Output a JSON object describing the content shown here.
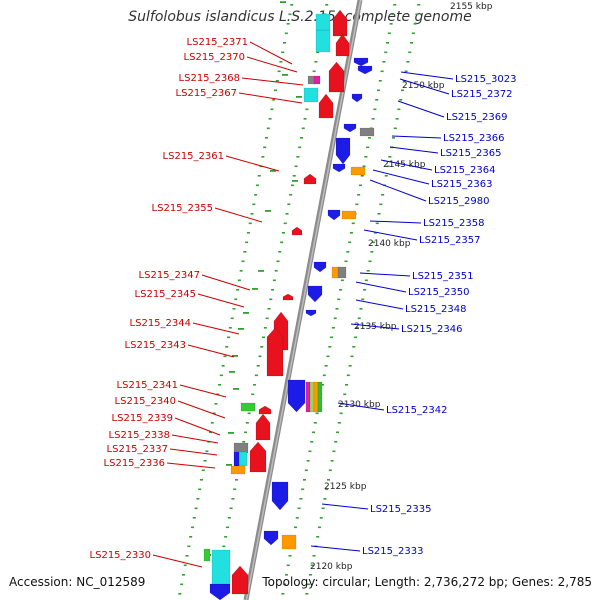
{
  "title": "Sulfolobus islandicus L.S.2.15, complete genome",
  "footer": {
    "accession": "Accession: NC_012589",
    "summary": "Topology: circular; Length: 2,736,272 bp; Genes: 2,785"
  },
  "colors": {
    "forward_gene": "#e8121e",
    "reverse_gene": "#1c1ce6",
    "forward_label": "#cc0000",
    "reverse_label": "#0000cc",
    "backbone": "#8c8c8c",
    "ticks": "#33a033",
    "cyan": "#22e0e0",
    "green": "#33cc33",
    "orange": "#ff9900",
    "gray_block": "#808080",
    "magenta": "#e020a0"
  },
  "scale_labels": [
    "2155 kbp",
    "2150 kbp",
    "2145 kbp",
    "2140 kbp",
    "2135 kbp",
    "2130 kbp",
    "2125 kbp",
    "2120 kbp"
  ],
  "left_labels": [
    "LS215_2371",
    "LS215_2370",
    "LS215_2368",
    "LS215_2367",
    "LS215_2361",
    "LS215_2355",
    "LS215_2347",
    "LS215_2345",
    "LS215_2344",
    "LS215_2343",
    "LS215_2341",
    "LS215_2340",
    "LS215_2339",
    "LS215_2338",
    "LS215_2337",
    "LS215_2336",
    "LS215_2330"
  ],
  "right_labels": [
    "LS215_3023",
    "LS215_2372",
    "LS215_2369",
    "LS215_2366",
    "LS215_2365",
    "LS215_2364",
    "LS215_2363",
    "LS215_2980",
    "LS215_2358",
    "LS215_2357",
    "LS215_2351",
    "LS215_2350",
    "LS215_2348",
    "LS215_2346",
    "LS215_2342",
    "LS215_2335",
    "LS215_2333"
  ]
}
